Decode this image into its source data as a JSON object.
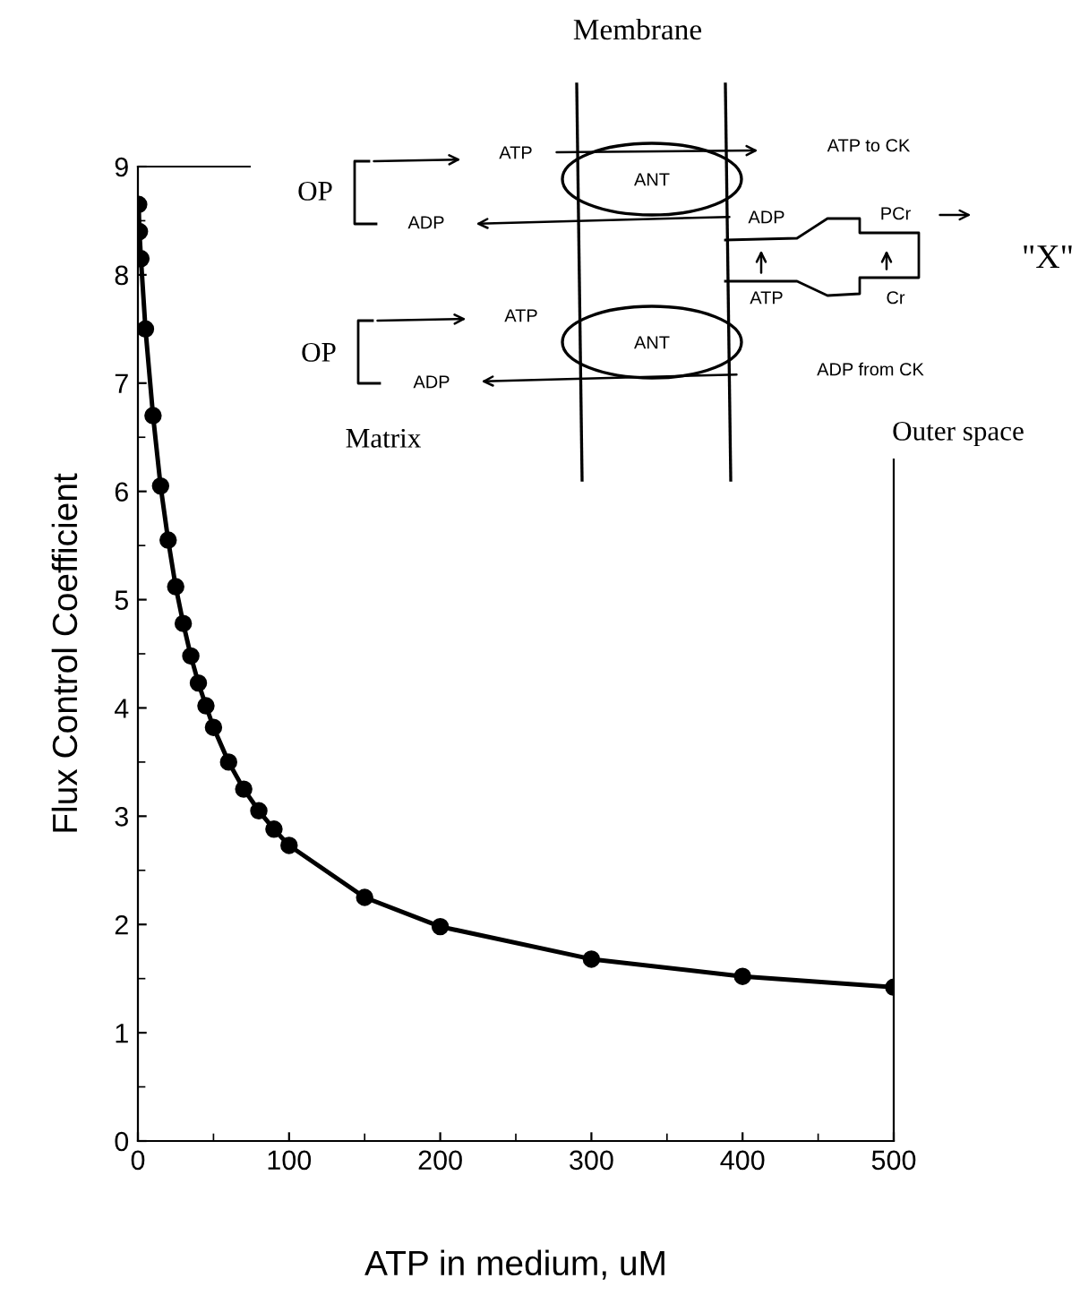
{
  "chart_data": {
    "type": "line",
    "xlabel": "ATP in medium, uM",
    "ylabel": "Flux Control Coefficient",
    "x": [
      0.5,
      1,
      2,
      5,
      10,
      15,
      20,
      25,
      30,
      35,
      40,
      45,
      50,
      60,
      70,
      80,
      90,
      100,
      150,
      200,
      300,
      400,
      500
    ],
    "series": [
      {
        "color": "#000000",
        "values": [
          8.65,
          8.4,
          8.15,
          7.5,
          6.7,
          6.05,
          5.55,
          5.12,
          4.78,
          4.48,
          4.23,
          4.02,
          3.82,
          3.5,
          3.25,
          3.05,
          2.88,
          2.73,
          2.25,
          1.98,
          1.68,
          1.52,
          1.42
        ]
      }
    ],
    "xlim": [
      0,
      500
    ],
    "ylim": [
      0,
      9
    ],
    "xticks": [
      0,
      100,
      200,
      300,
      400,
      500
    ],
    "yticks": [
      0,
      1,
      2,
      3,
      4,
      5,
      6,
      7,
      8,
      9
    ],
    "marker": "circle",
    "line_style": "solid",
    "grid": false,
    "legend": false,
    "annotations": [
      "Membrane",
      "OP",
      "ATP",
      "ADP",
      "ANT",
      "ATP to CK",
      "ADP",
      "PCr",
      "\"X\"",
      "ATP",
      "Cr",
      "OP",
      "ATP",
      "ADP",
      "ANT",
      "ADP from CK",
      "Matrix",
      "Outer space"
    ]
  }
}
